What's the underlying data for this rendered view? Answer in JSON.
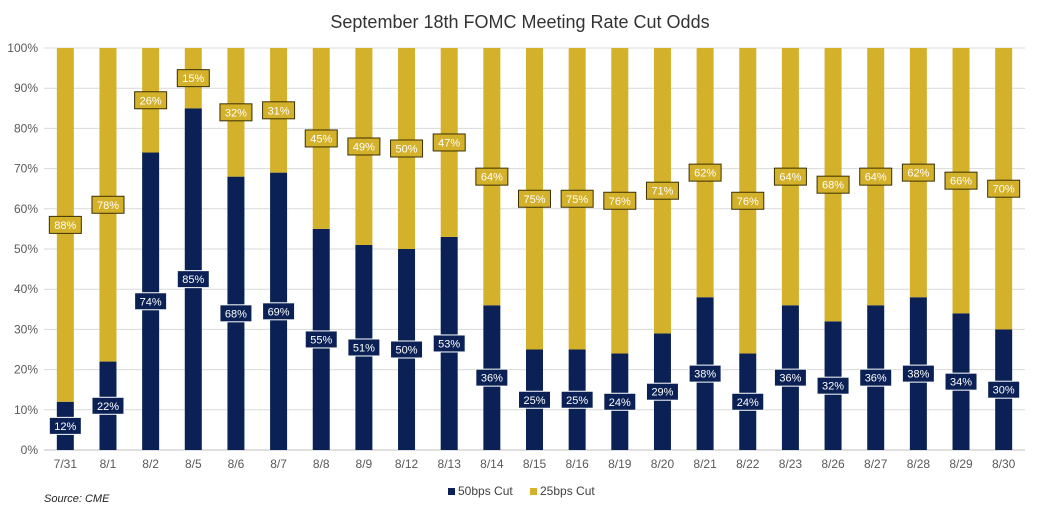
{
  "chart_data": {
    "type": "bar",
    "stacked": true,
    "title": "September 18th FOMC Meeting Rate Cut Odds",
    "xlabel": "",
    "ylabel": "",
    "ylim": [
      0,
      100
    ],
    "yticks": [
      "0%",
      "10%",
      "20%",
      "30%",
      "40%",
      "50%",
      "60%",
      "70%",
      "80%",
      "90%",
      "100%"
    ],
    "grid": true,
    "legend_position": "bottom",
    "categories": [
      "7/31",
      "8/1",
      "8/2",
      "8/5",
      "8/6",
      "8/7",
      "8/8",
      "8/9",
      "8/12",
      "8/13",
      "8/14",
      "8/15",
      "8/16",
      "8/19",
      "8/20",
      "8/21",
      "8/22",
      "8/23",
      "8/26",
      "8/27",
      "8/28",
      "8/29",
      "8/30"
    ],
    "series": [
      {
        "name": "50bps Cut",
        "color": "#0b2155",
        "values": [
          12,
          22,
          74,
          85,
          68,
          69,
          55,
          51,
          50,
          53,
          36,
          25,
          25,
          24,
          29,
          38,
          24,
          36,
          32,
          36,
          38,
          34,
          30
        ]
      },
      {
        "name": "25bps Cut",
        "color": "#d4b12a",
        "values": [
          88,
          78,
          26,
          15,
          32,
          31,
          45,
          49,
          50,
          47,
          64,
          75,
          75,
          76,
          71,
          62,
          76,
          64,
          68,
          64,
          62,
          66,
          70
        ]
      }
    ],
    "source": "Source: CME"
  }
}
